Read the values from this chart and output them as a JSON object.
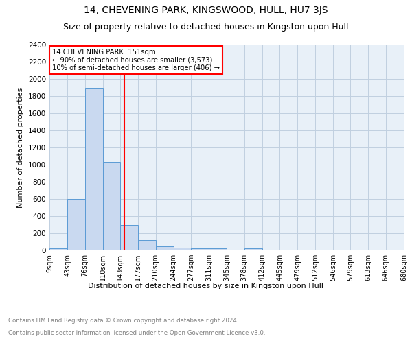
{
  "title": "14, CHEVENING PARK, KINGSWOOD, HULL, HU7 3JS",
  "subtitle": "Size of property relative to detached houses in Kingston upon Hull",
  "xlabel": "Distribution of detached houses by size in Kingston upon Hull",
  "ylabel": "Number of detached properties",
  "footer_line1": "Contains HM Land Registry data © Crown copyright and database right 2024.",
  "footer_line2": "Contains public sector information licensed under the Open Government Licence v3.0.",
  "bar_edges": [
    9,
    43,
    76,
    110,
    143,
    177,
    210,
    244,
    277,
    311,
    345,
    378,
    412,
    445,
    479,
    512,
    546,
    579,
    613,
    646,
    680
  ],
  "bar_heights": [
    25,
    600,
    1890,
    1035,
    295,
    120,
    50,
    30,
    25,
    25,
    0,
    25,
    0,
    0,
    0,
    0,
    0,
    0,
    0,
    0
  ],
  "bar_color": "#c9d9f0",
  "bar_edge_color": "#5b9bd5",
  "red_line_x": 151,
  "annotation_text": "14 CHEVENING PARK: 151sqm\n← 90% of detached houses are smaller (3,573)\n10% of semi-detached houses are larger (406) →",
  "annotation_box_color": "white",
  "annotation_box_edge_color": "red",
  "ylim": [
    0,
    2400
  ],
  "yticks": [
    0,
    200,
    400,
    600,
    800,
    1000,
    1200,
    1400,
    1600,
    1800,
    2000,
    2200,
    2400
  ],
  "grid_color": "#c0cfe0",
  "bg_color": "#e8f0f8",
  "title_fontsize": 10,
  "subtitle_fontsize": 9
}
